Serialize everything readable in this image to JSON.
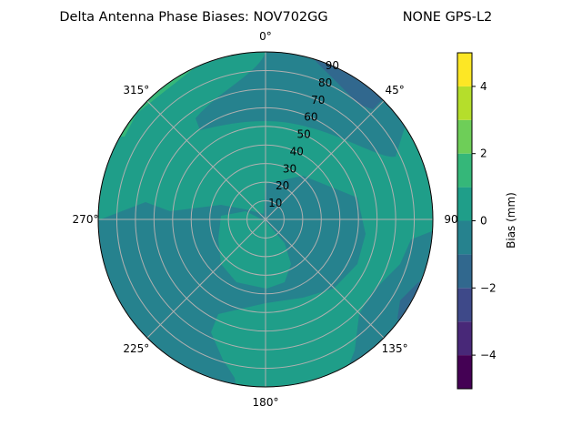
{
  "chart_data": {
    "type": "contour",
    "projection": "polar",
    "title": "Delta Antenna Phase Biases: NOV702GG",
    "subtitle": "NONE GPS-L2",
    "angle_ticks": [
      "0°",
      "45°",
      "90°",
      "135°",
      "180°",
      "225°",
      "270°",
      "315°"
    ],
    "radial_ticks": [
      "10",
      "20",
      "30",
      "40",
      "50",
      "60",
      "70",
      "80",
      "90"
    ],
    "rlim": [
      0,
      90
    ],
    "grid": true,
    "colormap": "viridis",
    "levels": [
      -5,
      -4,
      -3,
      -2,
      -1,
      0,
      1,
      2,
      3,
      4,
      5
    ],
    "level_colors": [
      "#440154",
      "#482878",
      "#3e4989",
      "#31688e",
      "#26828e",
      "#1f9e89",
      "#35b779",
      "#6ece58",
      "#b5de2b",
      "#fde725"
    ],
    "colorbar": {
      "label": "Bias (mm)",
      "ticks": [
        "−4",
        "−2",
        "0",
        "2",
        "4"
      ],
      "tick_values": [
        -4,
        -2,
        0,
        2,
        4
      ],
      "range": [
        -5,
        5
      ]
    },
    "regions_present": [
      {
        "range": [
          0,
          1
        ],
        "description_level": "dominant"
      },
      {
        "range": [
          -1,
          0
        ],
        "description_level": "dominant"
      },
      {
        "range": [
          1,
          2
        ],
        "description_level": "northwest rim"
      },
      {
        "range": [
          -2,
          -1
        ],
        "description_level": "northeast and east-southeast rim"
      }
    ]
  }
}
